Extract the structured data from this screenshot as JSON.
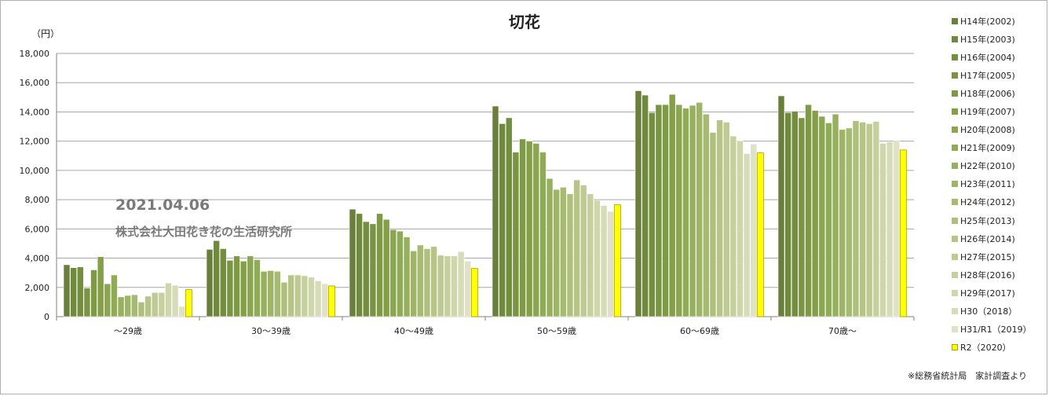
{
  "title": "切花",
  "unit_label": "（円）",
  "stamp": {
    "date": "2021.04.06",
    "organization": "株式会社大田花き花の生活研究所"
  },
  "source_note": "※総務省統計局　家計調査より",
  "colors": {
    "series": [
      "#6a7f3a",
      "#6f8a3c",
      "#738f3e",
      "#799541",
      "#7e9a44",
      "#84a047",
      "#8aa64e",
      "#90ab55",
      "#97b05d",
      "#9eb566",
      "#a6ba70",
      "#aec07b",
      "#b6c586",
      "#beca92",
      "#c6d09e",
      "#ced6aa",
      "#d6dcb7",
      "#dfe2c6",
      "#ffff00"
    ],
    "grid": "#a6a6a6",
    "axis": "#808080"
  },
  "chart_data": {
    "type": "bar",
    "title": "切花",
    "ylabel": "（円）",
    "xlabel": "",
    "ylim": [
      0,
      18000
    ],
    "yticks": [
      0,
      2000,
      4000,
      6000,
      8000,
      10000,
      12000,
      14000,
      16000,
      18000
    ],
    "ytick_labels": [
      "0",
      "2,000",
      "4,000",
      "6,000",
      "8,000",
      "10,000",
      "12,000",
      "14,000",
      "16,000",
      "18,000"
    ],
    "grid": true,
    "legend_position": "right",
    "categories": [
      "～29歳",
      "30～39歳",
      "40～49歳",
      "50～59歳",
      "60～69歳",
      "70歳～"
    ],
    "series": [
      {
        "name": "H14年(2002)",
        "values": [
          3550,
          4600,
          7350,
          14400,
          15450,
          15100
        ]
      },
      {
        "name": "H15年(2003)",
        "values": [
          3350,
          5200,
          7050,
          13200,
          15150,
          13950
        ]
      },
      {
        "name": "H16年(2004)",
        "values": [
          3400,
          4650,
          6500,
          13600,
          13950,
          14050
        ]
      },
      {
        "name": "H17年(2005)",
        "values": [
          1950,
          3850,
          6350,
          11250,
          14500,
          13600
        ]
      },
      {
        "name": "H18年(2006)",
        "values": [
          3200,
          4150,
          7050,
          12150,
          14500,
          14500
        ]
      },
      {
        "name": "H19年(2007)",
        "values": [
          4100,
          3800,
          6650,
          12000,
          15200,
          14100
        ]
      },
      {
        "name": "H20年(2008)",
        "values": [
          2250,
          4150,
          5950,
          11850,
          14500,
          13700
        ]
      },
      {
        "name": "H21年(2009)",
        "values": [
          2850,
          3900,
          5850,
          11250,
          14250,
          13250
        ]
      },
      {
        "name": "H22年(2010)",
        "values": [
          1350,
          3100,
          5450,
          9450,
          14450,
          13850
        ]
      },
      {
        "name": "H23年(2011)",
        "values": [
          1450,
          3150,
          4500,
          8700,
          14650,
          12800
        ]
      },
      {
        "name": "H24年(2012)",
        "values": [
          1500,
          3100,
          4900,
          8850,
          13850,
          12900
        ]
      },
      {
        "name": "H25年(2013)",
        "values": [
          1000,
          2350,
          4650,
          8400,
          12600,
          13400
        ]
      },
      {
        "name": "H26年(2014)",
        "values": [
          1400,
          2850,
          4800,
          9350,
          13450,
          13300
        ]
      },
      {
        "name": "H27年(2015)",
        "values": [
          1650,
          2850,
          4200,
          9000,
          13300,
          13200
        ]
      },
      {
        "name": "H28年(2016)",
        "values": [
          1650,
          2800,
          4150,
          8400,
          12350,
          13350
        ]
      },
      {
        "name": "H29年(2017)",
        "values": [
          2300,
          2700,
          4150,
          7950,
          12000,
          11850
        ]
      },
      {
        "name": "H30（2018）",
        "values": [
          2150,
          2450,
          4450,
          7600,
          11150,
          11950
        ]
      },
      {
        "name": "H31/R1（2019）",
        "values": [
          700,
          2250,
          3800,
          7200,
          11800,
          12050
        ]
      },
      {
        "name": "R2（2020）",
        "values": [
          1850,
          2100,
          3300,
          7650,
          11200,
          11400
        ]
      }
    ]
  }
}
